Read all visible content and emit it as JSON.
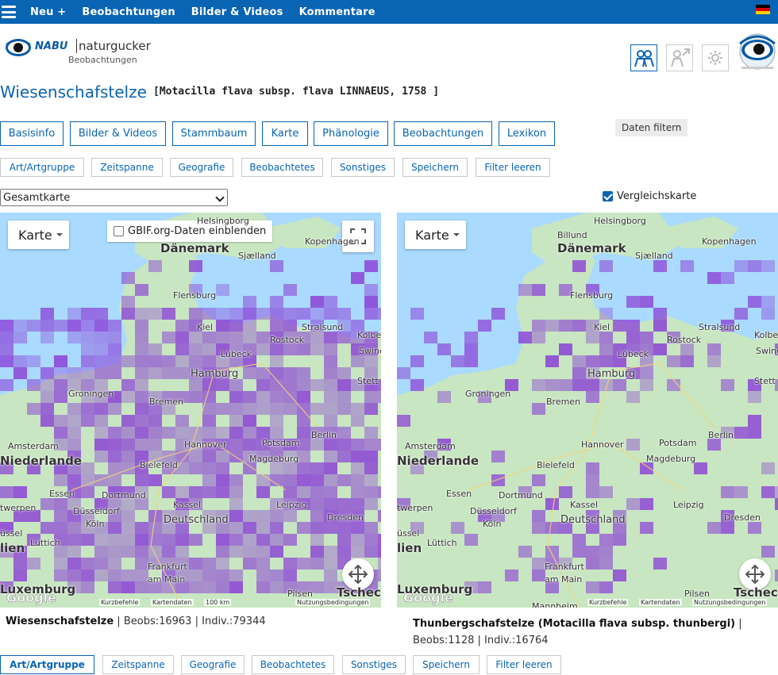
{
  "nav": {
    "items": [
      "Neu +",
      "Beobachtungen",
      "Bilder & Videos",
      "Kommentare"
    ]
  },
  "logo": {
    "brand": "NABU",
    "name": "naturgucker",
    "subtitle": "Beobachtungen"
  },
  "species": {
    "title": "Wiesenschafstelze",
    "scientific": "[Motacilla flava subsp. flava LINNAEUS, 1758 ]"
  },
  "tabs": [
    "Basisinfo",
    "Bilder & Videos",
    "Stammbaum",
    "Karte",
    "Phänologie",
    "Beobachtungen",
    "Lexikon"
  ],
  "filter_button": "Daten filtern",
  "subfilters": [
    "Art/Artgruppe",
    "Zeitspanne",
    "Geografie",
    "Beobachtetes",
    "Sonstiges",
    "Speichern",
    "Filter leeren"
  ],
  "map_select": {
    "value": "Gesamtkarte"
  },
  "compare_checkbox": {
    "label": "Vergleichskarte",
    "checked": true
  },
  "map_left": {
    "type_label": "Karte",
    "gbif_label": "GBIF.org-Daten einblenden",
    "attribution": [
      "Kurzbefehle",
      "Kartendaten",
      "100 km",
      "Nutzungsbedingungen"
    ]
  },
  "map_right": {
    "type_label": "Karte",
    "attribution": [
      "Kurzbefehle",
      "Kartendaten",
      "Nutzungsbedingungen"
    ]
  },
  "map_labels": {
    "countries": [
      "Dänemark",
      "Niederlande",
      "Deutschland",
      "Luxemburg",
      "Tschec",
      "lien"
    ],
    "cities": [
      "Helsingborg",
      "Kopenhagen",
      "Sjælland",
      "Flensburg",
      "Kiel",
      "Stralsund",
      "Rostock",
      "Kolbe",
      "Lübeck",
      "Swinemü",
      "Hamburg",
      "Stett",
      "Groningen",
      "Bremen",
      "Amsterdam",
      "Hannover",
      "Potsdam",
      "Berlin",
      "Bielefeld",
      "Magdeburg",
      "Essen",
      "Dortmund",
      "twerpen",
      "Düsseldorf",
      "Kassel",
      "Leipzig",
      "Köln",
      "Deutschland",
      "Dresden",
      "üssel",
      "Lüttich",
      "Frankfurt",
      "am Main",
      "Pilsen",
      "Billund",
      "Mannheim"
    ],
    "google": "Google"
  },
  "caption_left": {
    "name": "Wiesenschafstelze",
    "beobs": "Beobs:16963",
    "indiv": "Indiv.:79344"
  },
  "caption_right": {
    "name": "Thunbergschafstelze (Motacilla flava subsp. thunbergi)",
    "beobs": "Beobs:1128",
    "indiv": "Indiv.:16764"
  },
  "colors": {
    "brand_blue": "#0a64b4",
    "grid_purple": "#8a3fd6",
    "sea": "#aadaff",
    "land": "#c8e6c1"
  }
}
